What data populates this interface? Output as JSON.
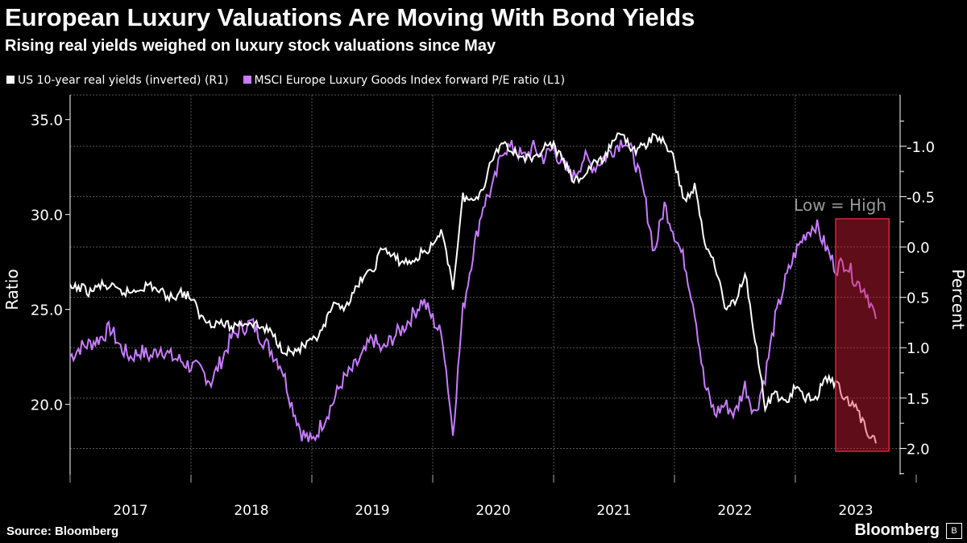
{
  "header": {
    "title": "European Luxury Valuations Are Moving With Bond Yields",
    "subtitle": "Rising real yields weighed on luxury stock valuations since May"
  },
  "footer": {
    "source": "Source: Bloomberg",
    "brand": "Bloomberg"
  },
  "chart_data": {
    "type": "line",
    "legend": [
      {
        "name": "US 10-year real yields (inverted) (R1)",
        "color": "#ffffff"
      },
      {
        "name": "MSCI Europe Luxury Goods Index forward P/E ratio (L1)",
        "color": "#c77dff"
      }
    ],
    "ylabel_left": "Ratio",
    "ylabel_right": "Percent",
    "annotation": "Low = High",
    "yleft": {
      "range": [
        16.3,
        36.3
      ],
      "ticks": [
        20.0,
        25.0,
        30.0,
        35.0
      ]
    },
    "yright": {
      "range": [
        -1.51,
        2.26
      ],
      "inverted": true,
      "ticks": [
        -1.0,
        -0.5,
        0.0,
        0.5,
        1.0,
        1.5,
        2.0
      ]
    },
    "xticks": [
      "2017",
      "2018",
      "2019",
      "2020",
      "2021",
      "2022",
      "2023"
    ],
    "x_start": "2017-01",
    "x_end": "2023-11",
    "highlight": {
      "from_month": 76,
      "to_month": 80.5,
      "color": "#e0203c"
    },
    "series": [
      {
        "name": "MSCI Europe Luxury Goods Index forward P/E ratio",
        "axis": "left",
        "color": "#c77dff",
        "values": [
          22.5,
          23,
          23.2,
          23.5,
          24,
          23,
          22.5,
          22.8,
          22.5,
          23,
          22.5,
          22.3,
          22,
          21.8,
          21.2,
          22.3,
          23.5,
          24,
          24.3,
          23.5,
          22.8,
          22,
          20,
          18.5,
          18,
          19,
          20,
          21.2,
          21.8,
          22.5,
          23.5,
          22.8,
          23.5,
          24,
          24.7,
          25.5,
          24.5,
          23.5,
          18.5,
          25,
          28,
          30.5,
          31.5,
          33.5,
          33.5,
          33,
          33.5,
          33,
          33.5,
          32.5,
          32,
          33,
          32.5,
          33,
          33.5,
          34,
          33,
          31,
          28,
          30.5,
          29,
          27.5,
          25,
          21,
          19.5,
          20,
          19.5,
          21,
          19.5,
          21.5,
          24.5,
          26.5,
          28,
          29,
          29.5,
          28.3,
          27.2,
          27.5,
          26.5,
          26,
          24.5
        ]
      },
      {
        "name": "US 10-year real yields (inverted)",
        "axis": "right",
        "color": "#ffffff",
        "values": [
          0.42,
          0.4,
          0.45,
          0.38,
          0.4,
          0.45,
          0.45,
          0.4,
          0.38,
          0.45,
          0.5,
          0.45,
          0.5,
          0.7,
          0.75,
          0.75,
          0.8,
          0.75,
          0.75,
          0.8,
          0.85,
          1.0,
          1.05,
          1.0,
          0.95,
          0.85,
          0.6,
          0.6,
          0.5,
          0.3,
          0.25,
          0.0,
          0.1,
          0.15,
          0.15,
          0.05,
          0.0,
          -0.15,
          0.4,
          -0.5,
          -0.45,
          -0.6,
          -0.9,
          -1.05,
          -0.95,
          -0.9,
          -0.85,
          -1.0,
          -1.0,
          -0.85,
          -0.65,
          -0.7,
          -0.85,
          -0.85,
          -1.1,
          -1.1,
          -0.95,
          -1.0,
          -1.1,
          -1.05,
          -0.85,
          -0.45,
          -0.6,
          -0.05,
          0.15,
          0.6,
          0.55,
          0.25,
          0.9,
          1.6,
          1.45,
          1.55,
          1.4,
          1.5,
          1.5,
          1.3,
          1.35,
          1.5,
          1.6,
          1.8,
          1.95
        ]
      }
    ]
  }
}
